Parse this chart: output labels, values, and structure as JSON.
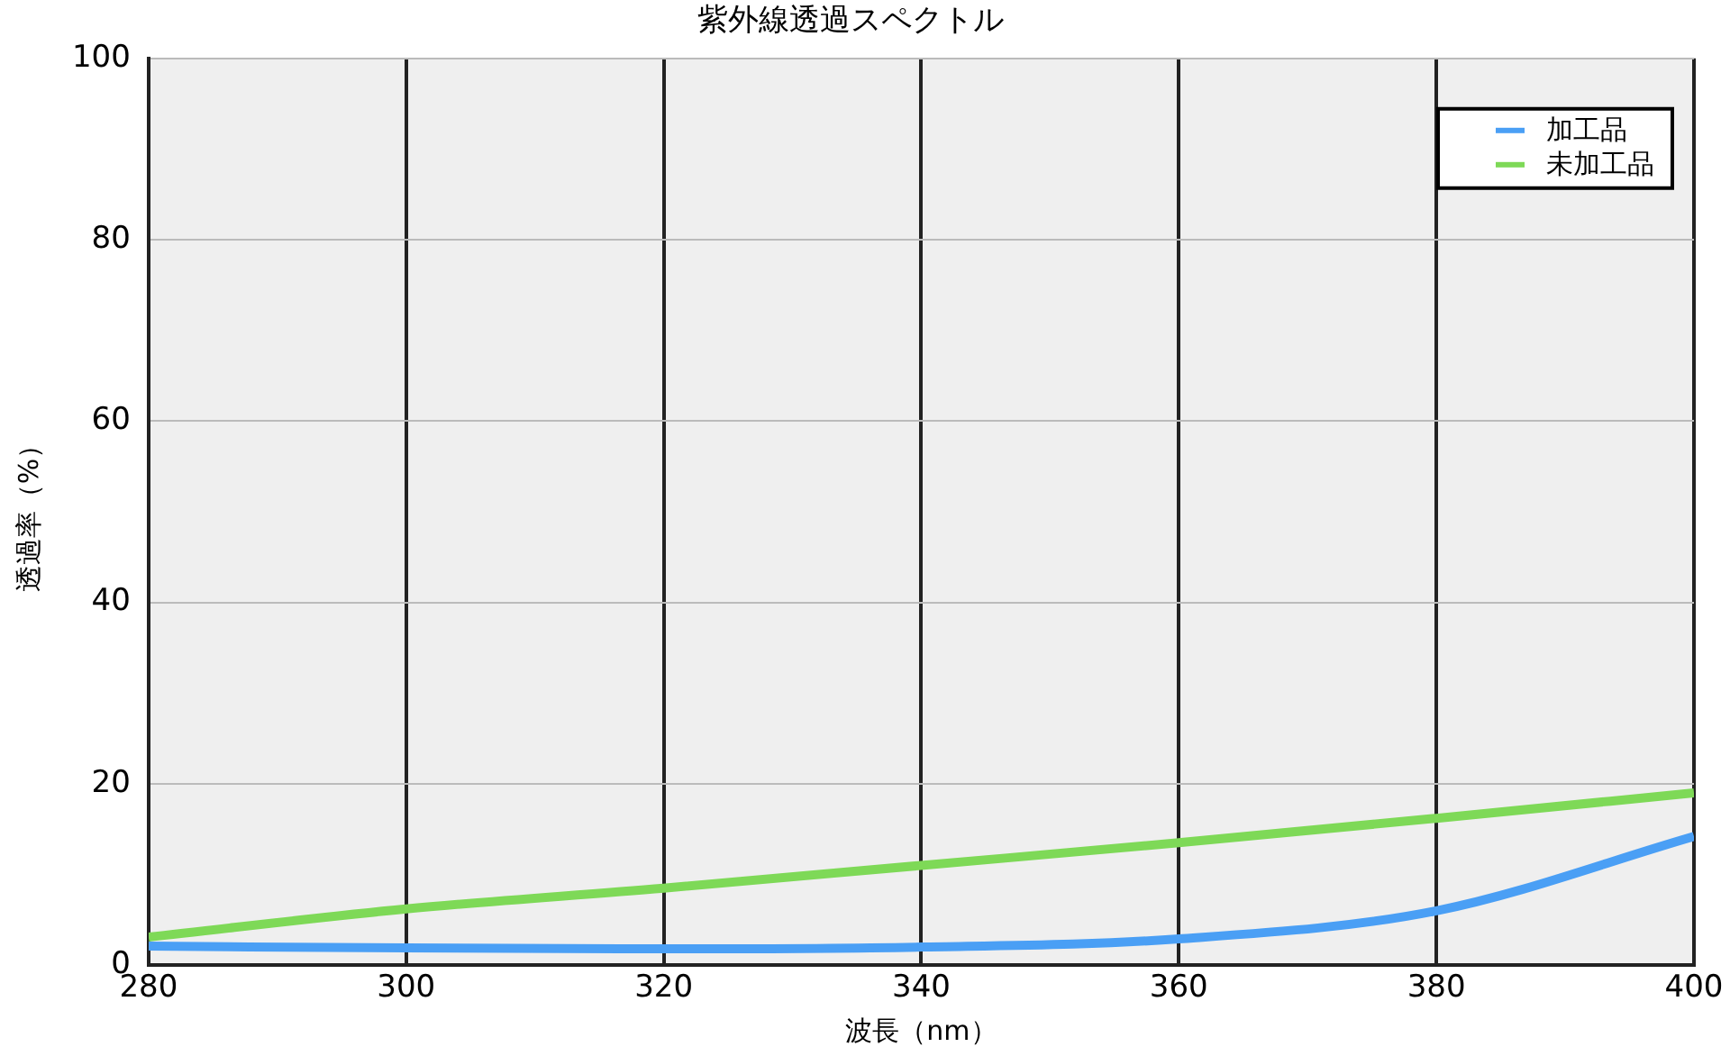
{
  "chart_data": {
    "type": "line",
    "title": "紫外線透過スペクトル",
    "xlabel": "波長（nm）",
    "ylabel": "透過率（%）",
    "x": [
      280,
      300,
      320,
      340,
      360,
      380,
      400
    ],
    "series": [
      {
        "name": "加工品",
        "color": "#4a9ff5",
        "values": [
          2.1,
          1.9,
          1.8,
          2,
          2.9,
          6,
          14.2
        ]
      },
      {
        "name": "未加工品",
        "color": "#7ed957",
        "values": [
          3.1,
          6.2,
          8.5,
          11,
          13.5,
          16.2,
          19
        ]
      }
    ],
    "xlim": [
      280,
      400
    ],
    "xticks": [
      280,
      300,
      320,
      340,
      360,
      380,
      400
    ],
    "ylim": [
      0,
      100
    ],
    "yticks": [
      0,
      20,
      40,
      60,
      80,
      100
    ],
    "grid": true,
    "legend": "top right",
    "marker": "none",
    "line_style": "solid"
  }
}
